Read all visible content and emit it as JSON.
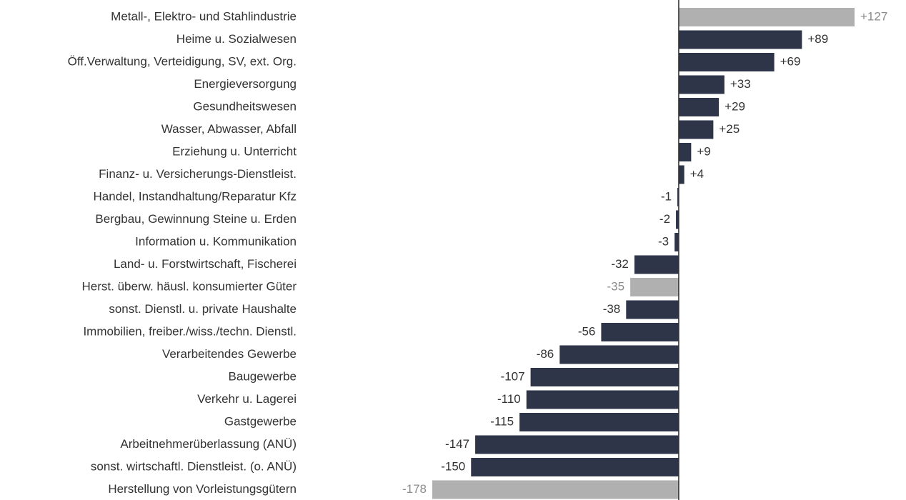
{
  "chart_data": {
    "type": "bar",
    "orientation": "horizontal",
    "categories": [
      "Metall-, Elektro- und Stahlindustrie",
      "Heime u. Sozialwesen",
      "Öff.Verwaltung, Verteidigung, SV, ext. Org.",
      "Energieversorgung",
      "Gesundheitswesen",
      "Wasser, Abwasser, Abfall",
      "Erziehung u. Unterricht",
      "Finanz- u. Versicherungs-Dienstleist.",
      "Handel, Instandhaltung/Reparatur Kfz",
      "Bergbau, Gewinnung Steine u. Erden",
      "Information u. Kommunikation",
      "Land- u. Forstwirtschaft, Fischerei",
      "Herst. überw. häusl. konsumierter Güter",
      "sonst. Dienstl. u. private Haushalte",
      "Immobilien, freiber./wiss./techn. Dienstl.",
      "Verarbeitendes Gewerbe",
      "Baugewerbe",
      "Verkehr u. Lagerei",
      "Gastgewerbe",
      "Arbeitnehmerüberlassung (ANÜ)",
      "sonst. wirtschaftl. Dienstleist. (o. ANÜ)",
      "Herstellung von Vorleistungsgütern"
    ],
    "values": [
      127,
      89,
      69,
      33,
      29,
      25,
      9,
      4,
      -1,
      -2,
      -3,
      -32,
      -35,
      -38,
      -56,
      -86,
      -107,
      -110,
      -115,
      -147,
      -150,
      -178
    ],
    "value_labels": [
      "+127",
      "+89",
      "+69",
      "+33",
      "+29",
      "+25",
      "+9",
      "+4",
      "-1",
      "-2",
      "-3",
      "-32",
      "-35",
      "-38",
      "-56",
      "-86",
      "-107",
      "-110",
      "-115",
      "-147",
      "-150",
      "-178"
    ],
    "colors": [
      "#b0b0b0",
      "#2e3549",
      "#2e3549",
      "#2e3549",
      "#2e3549",
      "#2e3549",
      "#2e3549",
      "#2e3549",
      "#2e3549",
      "#2e3549",
      "#2e3549",
      "#2e3549",
      "#b0b0b0",
      "#2e3549",
      "#2e3549",
      "#2e3549",
      "#2e3549",
      "#2e3549",
      "#2e3549",
      "#2e3549",
      "#2e3549",
      "#b0b0b0"
    ],
    "value_label_colors": [
      "#8c8c8c",
      "#333333",
      "#333333",
      "#333333",
      "#333333",
      "#333333",
      "#333333",
      "#333333",
      "#333333",
      "#333333",
      "#333333",
      "#333333",
      "#8c8c8c",
      "#333333",
      "#333333",
      "#333333",
      "#333333",
      "#333333",
      "#333333",
      "#333333",
      "#333333",
      "#8c8c8c"
    ]
  }
}
